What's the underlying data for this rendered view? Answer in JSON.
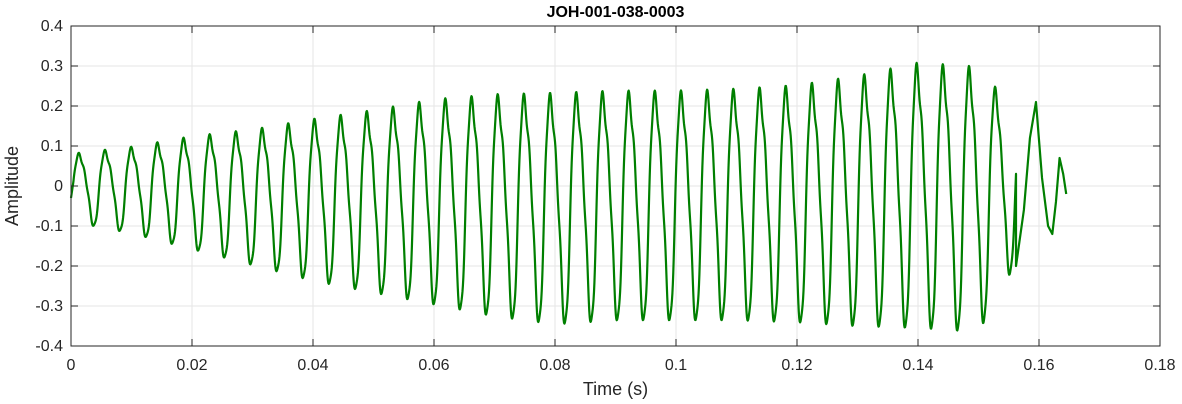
{
  "chart_data": {
    "type": "line",
    "title": "JOH-001-038-0003",
    "xlabel": "Time (s)",
    "ylabel": "Amplitude",
    "xlim": [
      0,
      0.18
    ],
    "ylim": [
      -0.4,
      0.4
    ],
    "xticks": [
      0,
      0.02,
      0.04,
      0.06,
      0.08,
      0.1,
      0.12,
      0.14,
      0.16,
      0.18
    ],
    "xtick_labels": [
      "0",
      "0.02",
      "0.04",
      "0.06",
      "0.08",
      "0.1",
      "0.12",
      "0.14",
      "0.16",
      "0.18"
    ],
    "yticks": [
      0.4,
      0.3,
      0.2,
      0.1,
      0,
      -0.1,
      -0.2,
      -0.3,
      -0.4
    ],
    "ytick_labels": [
      "0.4",
      "0.3",
      "0.2",
      "0.1",
      "0",
      "-0.1",
      "-0.2",
      "-0.3",
      "-0.4"
    ],
    "grid": true,
    "series": [
      {
        "color": "#007f00",
        "cycle_start": 0.0004,
        "cycle_end": 0.1562,
        "cycles": 36,
        "decay_end": 0.1645,
        "x_extremes": [
          0.0,
          0.164
        ],
        "y_extremes": [
          -0.37,
          0.345
        ],
        "envelope": {
          "t": [
            0.0,
            0.01,
            0.02,
            0.03,
            0.04,
            0.05,
            0.06,
            0.07,
            0.08,
            0.09,
            0.1,
            0.11,
            0.12,
            0.13,
            0.14,
            0.15,
            0.156
          ],
          "max": [
            0.09,
            0.11,
            0.14,
            0.16,
            0.19,
            0.215,
            0.245,
            0.26,
            0.265,
            0.27,
            0.27,
            0.275,
            0.285,
            0.31,
            0.345,
            0.335,
            0.21
          ],
          "min": [
            -0.09,
            -0.12,
            -0.16,
            -0.2,
            -0.24,
            -0.27,
            -0.3,
            -0.33,
            -0.35,
            -0.34,
            -0.34,
            -0.34,
            -0.345,
            -0.355,
            -0.36,
            -0.37,
            -0.2
          ]
        },
        "tail": {
          "t": [
            0.1562,
            0.1575,
            0.1585,
            0.1595,
            0.1605,
            0.1615,
            0.1622,
            0.1628,
            0.1634,
            0.164,
            0.1645
          ],
          "y": [
            -0.2,
            -0.06,
            0.12,
            0.21,
            0.02,
            -0.1,
            -0.12,
            -0.04,
            0.07,
            0.03,
            -0.02
          ]
        }
      }
    ]
  }
}
